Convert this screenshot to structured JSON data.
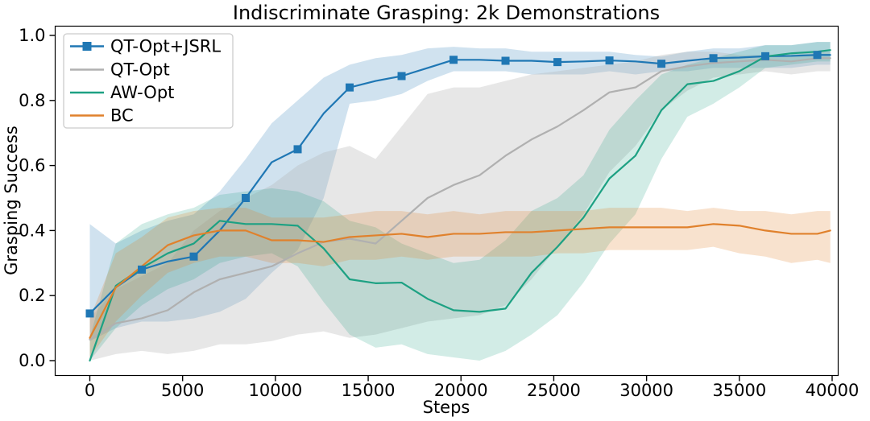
{
  "figure": {
    "title": "Indiscriminate Grasping: 2k Demonstrations",
    "xlabel": "Steps",
    "ylabel": "Grasping Success"
  },
  "legend": {
    "position": "upper left",
    "entries": [
      {
        "label": "QT-Opt+JSRL",
        "color": "#1f77b4",
        "marker": "square"
      },
      {
        "label": "QT-Opt",
        "color": "#b0b0b0",
        "marker": "none"
      },
      {
        "label": "AW-Opt",
        "color": "#1da183",
        "marker": "none"
      },
      {
        "label": "BC",
        "color": "#e0812c",
        "marker": "none"
      }
    ]
  },
  "axes": {
    "x_tick_values": [
      0,
      5000,
      10000,
      15000,
      20000,
      25000,
      30000,
      35000,
      40000
    ],
    "x_tick_labels": [
      "0",
      "5000",
      "10000",
      "15000",
      "20000",
      "25000",
      "30000",
      "35000",
      "40000"
    ],
    "y_tick_values": [
      0.0,
      0.2,
      0.4,
      0.6,
      0.8,
      1.0
    ],
    "y_tick_labels": [
      "0.0",
      "0.2",
      "0.4",
      "0.6",
      "0.8",
      "1.0"
    ]
  },
  "chart_data": {
    "type": "line",
    "title": "Indiscriminate Grasping: 2k Demonstrations",
    "xlabel": "Steps",
    "ylabel": "Grasping Success",
    "xlim": [
      0,
      40000
    ],
    "ylim": [
      0.0,
      1.0
    ],
    "grid": false,
    "legend_position": "upper left",
    "bands": "shaded min-max / confidence regions per series",
    "x": [
      0,
      1400,
      2800,
      4200,
      5600,
      7000,
      8400,
      9800,
      11200,
      12600,
      14000,
      15400,
      16800,
      18200,
      19600,
      21000,
      22400,
      23800,
      25200,
      26600,
      28000,
      29400,
      30800,
      32200,
      33600,
      35000,
      36400,
      37800,
      39200,
      39900
    ],
    "series": [
      {
        "name": "QT-Opt+JSRL",
        "color": "#1f77b4",
        "marker": "square",
        "marker_every_steps": 2800,
        "band_alpha": 0.21,
        "y": [
          0.145,
          0.225,
          0.28,
          0.305,
          0.32,
          0.4,
          0.5,
          0.61,
          0.65,
          0.76,
          0.84,
          0.86,
          0.875,
          0.9,
          0.925,
          0.925,
          0.922,
          0.922,
          0.918,
          0.92,
          0.923,
          0.92,
          0.913,
          0.922,
          0.93,
          0.932,
          0.936,
          0.937,
          0.94,
          0.94
        ],
        "band_low": [
          0.06,
          0.1,
          0.12,
          0.12,
          0.13,
          0.15,
          0.19,
          0.27,
          0.34,
          0.5,
          0.79,
          0.8,
          0.82,
          0.86,
          0.89,
          0.89,
          0.89,
          0.88,
          0.88,
          0.88,
          0.89,
          0.88,
          0.89,
          0.89,
          0.9,
          0.9,
          0.9,
          0.9,
          0.91,
          0.91
        ],
        "band_high": [
          0.42,
          0.36,
          0.4,
          0.43,
          0.45,
          0.52,
          0.62,
          0.73,
          0.8,
          0.87,
          0.91,
          0.93,
          0.94,
          0.96,
          0.965,
          0.96,
          0.96,
          0.95,
          0.95,
          0.95,
          0.95,
          0.94,
          0.935,
          0.95,
          0.96,
          0.96,
          0.97,
          0.97,
          0.98,
          0.98
        ]
      },
      {
        "name": "QT-Opt",
        "color": "#b0b0b0",
        "marker": "none",
        "marker_every_steps": 0,
        "band_alpha": 0.3,
        "y": [
          0.065,
          0.115,
          0.13,
          0.155,
          0.21,
          0.25,
          0.27,
          0.29,
          0.33,
          0.365,
          0.375,
          0.36,
          0.43,
          0.5,
          0.54,
          0.57,
          0.63,
          0.68,
          0.72,
          0.77,
          0.825,
          0.84,
          0.89,
          0.905,
          0.915,
          0.92,
          0.925,
          0.92,
          0.93,
          0.93
        ],
        "band_low": [
          0.0,
          0.02,
          0.03,
          0.02,
          0.03,
          0.05,
          0.05,
          0.06,
          0.08,
          0.09,
          0.07,
          0.08,
          0.1,
          0.12,
          0.13,
          0.14,
          0.17,
          0.25,
          0.35,
          0.45,
          0.58,
          0.66,
          0.77,
          0.83,
          0.87,
          0.88,
          0.89,
          0.88,
          0.89,
          0.89
        ],
        "band_high": [
          0.13,
          0.22,
          0.26,
          0.3,
          0.4,
          0.46,
          0.5,
          0.54,
          0.6,
          0.64,
          0.66,
          0.62,
          0.72,
          0.82,
          0.84,
          0.84,
          0.86,
          0.88,
          0.89,
          0.9,
          0.91,
          0.92,
          0.94,
          0.95,
          0.95,
          0.94,
          0.94,
          0.94,
          0.95,
          0.95
        ]
      },
      {
        "name": "AW-Opt",
        "color": "#1da183",
        "marker": "none",
        "marker_every_steps": 0,
        "band_alpha": 0.2,
        "y": [
          0.0,
          0.23,
          0.285,
          0.33,
          0.36,
          0.43,
          0.42,
          0.42,
          0.415,
          0.345,
          0.25,
          0.238,
          0.24,
          0.19,
          0.155,
          0.15,
          0.16,
          0.27,
          0.35,
          0.44,
          0.56,
          0.63,
          0.77,
          0.85,
          0.86,
          0.89,
          0.935,
          0.945,
          0.95,
          0.955
        ],
        "band_low": [
          0.0,
          0.1,
          0.17,
          0.22,
          0.25,
          0.3,
          0.32,
          0.33,
          0.29,
          0.18,
          0.08,
          0.04,
          0.05,
          0.02,
          0.01,
          0.0,
          0.03,
          0.08,
          0.14,
          0.24,
          0.36,
          0.45,
          0.62,
          0.75,
          0.79,
          0.84,
          0.9,
          0.91,
          0.92,
          0.92
        ],
        "band_high": [
          0.07,
          0.36,
          0.42,
          0.45,
          0.47,
          0.51,
          0.52,
          0.53,
          0.52,
          0.49,
          0.43,
          0.41,
          0.36,
          0.33,
          0.3,
          0.31,
          0.37,
          0.46,
          0.5,
          0.57,
          0.71,
          0.8,
          0.88,
          0.91,
          0.93,
          0.95,
          0.97,
          0.97,
          0.98,
          0.98
        ]
      },
      {
        "name": "BC",
        "color": "#e0812c",
        "marker": "none",
        "marker_every_steps": 0,
        "band_alpha": 0.23,
        "y": [
          0.07,
          0.225,
          0.29,
          0.355,
          0.385,
          0.4,
          0.4,
          0.37,
          0.37,
          0.365,
          0.38,
          0.385,
          0.39,
          0.38,
          0.39,
          0.39,
          0.395,
          0.395,
          0.4,
          0.405,
          0.41,
          0.41,
          0.41,
          0.41,
          0.42,
          0.415,
          0.4,
          0.39,
          0.39,
          0.4
        ],
        "band_low": [
          0.01,
          0.12,
          0.2,
          0.27,
          0.3,
          0.32,
          0.32,
          0.3,
          0.3,
          0.29,
          0.31,
          0.31,
          0.32,
          0.31,
          0.32,
          0.32,
          0.32,
          0.32,
          0.33,
          0.33,
          0.34,
          0.34,
          0.34,
          0.34,
          0.35,
          0.33,
          0.32,
          0.3,
          0.31,
          0.3
        ],
        "band_high": [
          0.13,
          0.33,
          0.38,
          0.44,
          0.46,
          0.47,
          0.47,
          0.44,
          0.44,
          0.44,
          0.45,
          0.46,
          0.46,
          0.45,
          0.46,
          0.45,
          0.46,
          0.46,
          0.46,
          0.46,
          0.47,
          0.47,
          0.47,
          0.46,
          0.47,
          0.46,
          0.46,
          0.45,
          0.46,
          0.46
        ]
      }
    ]
  }
}
